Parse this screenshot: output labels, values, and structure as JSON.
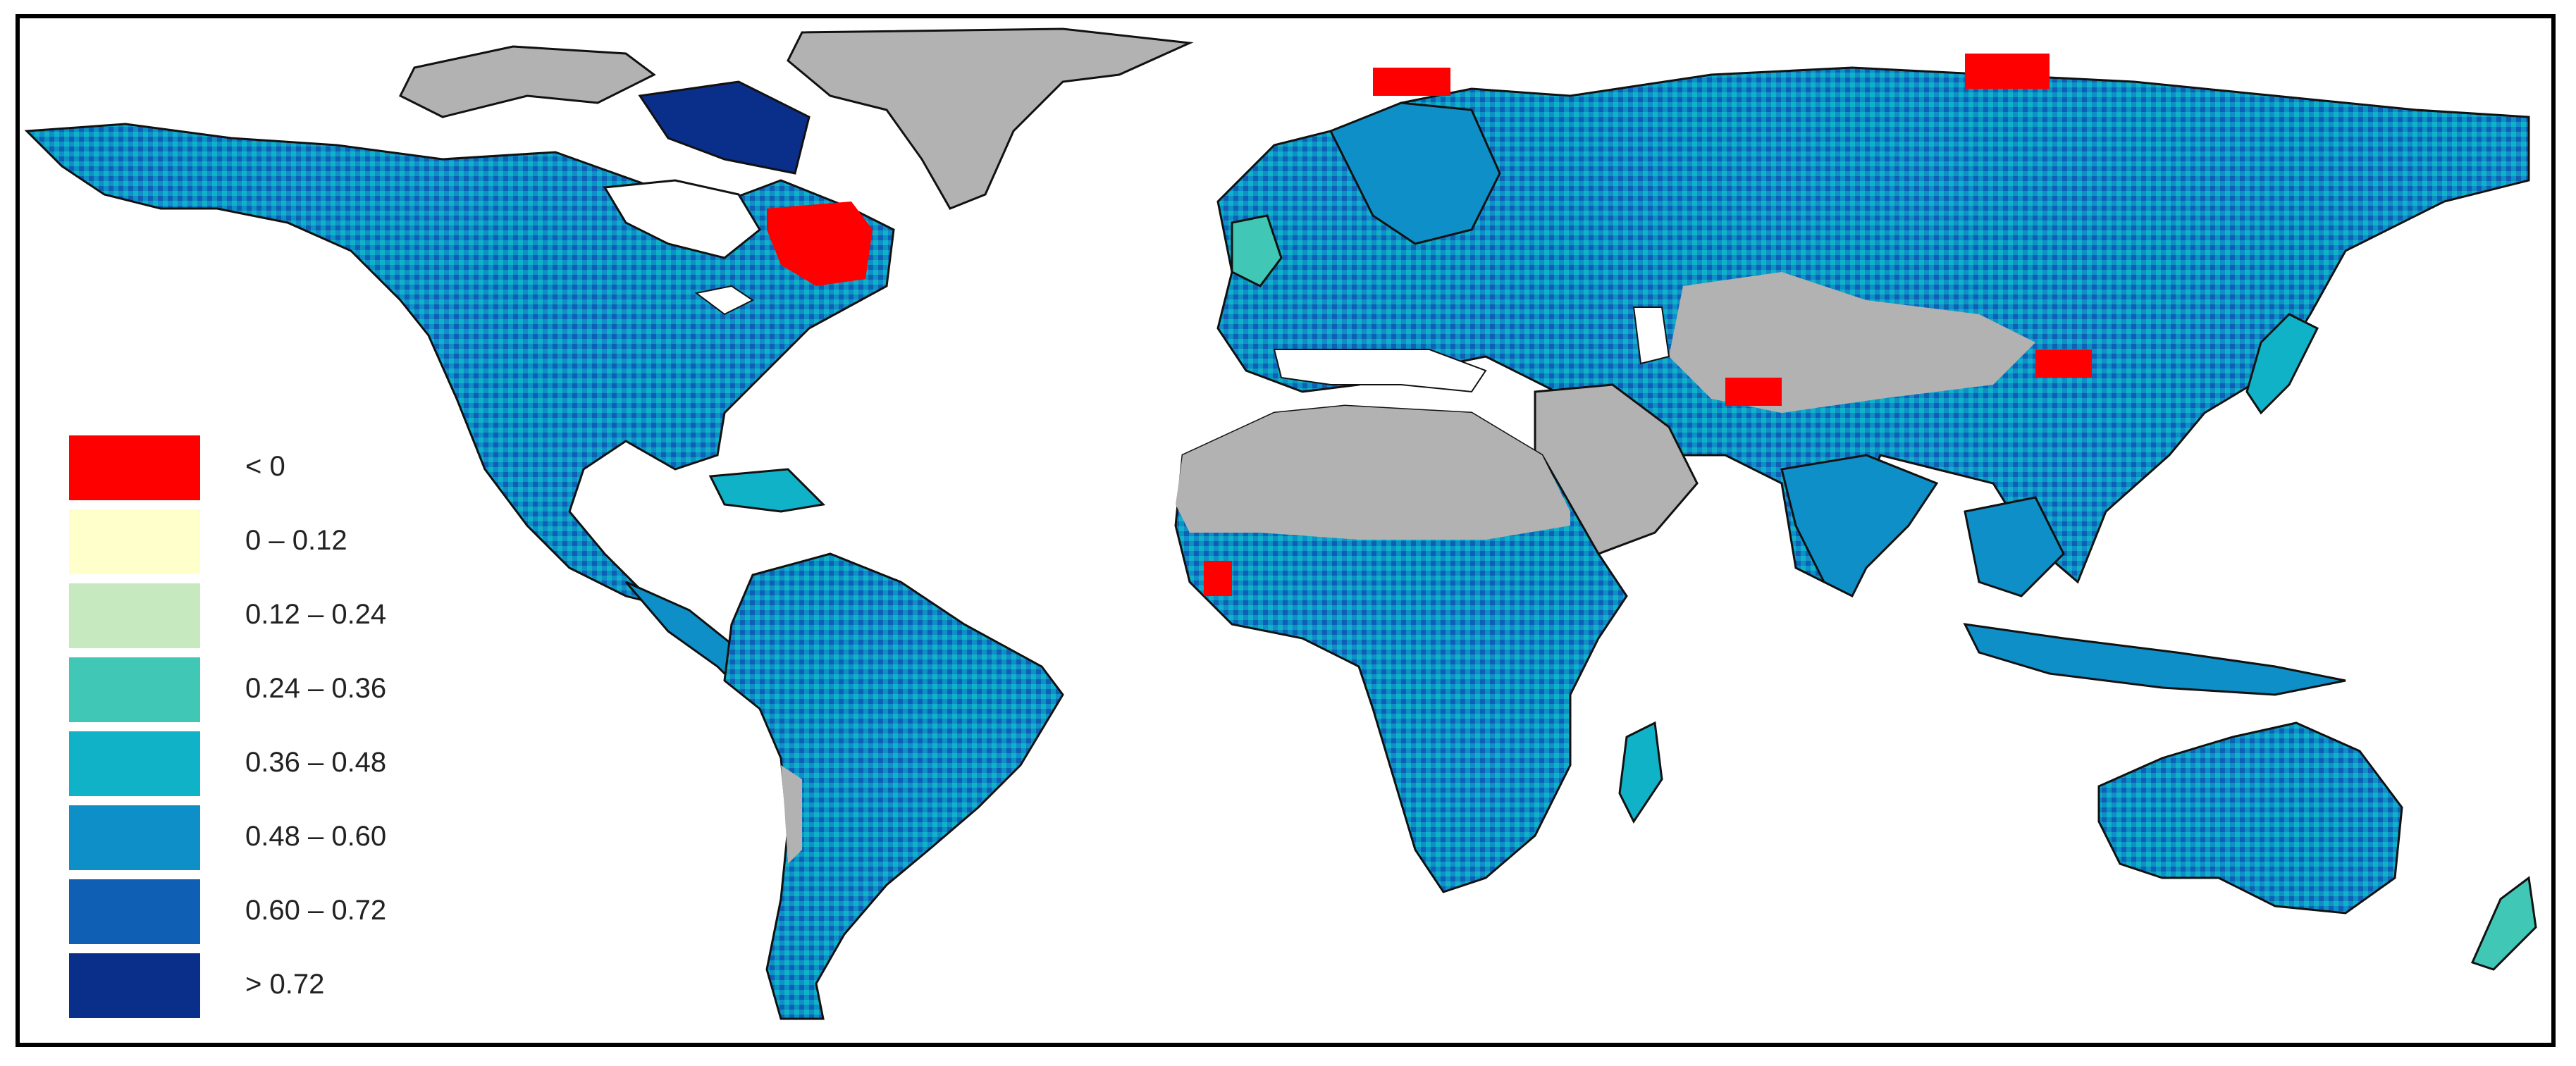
{
  "map": {
    "no_data_color": "#b2b2b2",
    "coastline_color": "#111111",
    "ocean_color": "#ffffff"
  },
  "legend": {
    "items": [
      {
        "label": "< 0",
        "color": "#ff0000"
      },
      {
        "label": "0 – 0.12",
        "color": "#ffffcc"
      },
      {
        "label": "0.12 – 0.24",
        "color": "#c7e9c0"
      },
      {
        "label": "0.24 – 0.36",
        "color": "#41c7b5"
      },
      {
        "label": "0.36 – 0.48",
        "color": "#10b2c7"
      },
      {
        "label": "0.48 – 0.60",
        "color": "#0e8fc7"
      },
      {
        "label": "0.60 – 0.72",
        "color": "#0f60b5"
      },
      {
        "label": "> 0.72",
        "color": "#0a2f8a"
      }
    ]
  }
}
